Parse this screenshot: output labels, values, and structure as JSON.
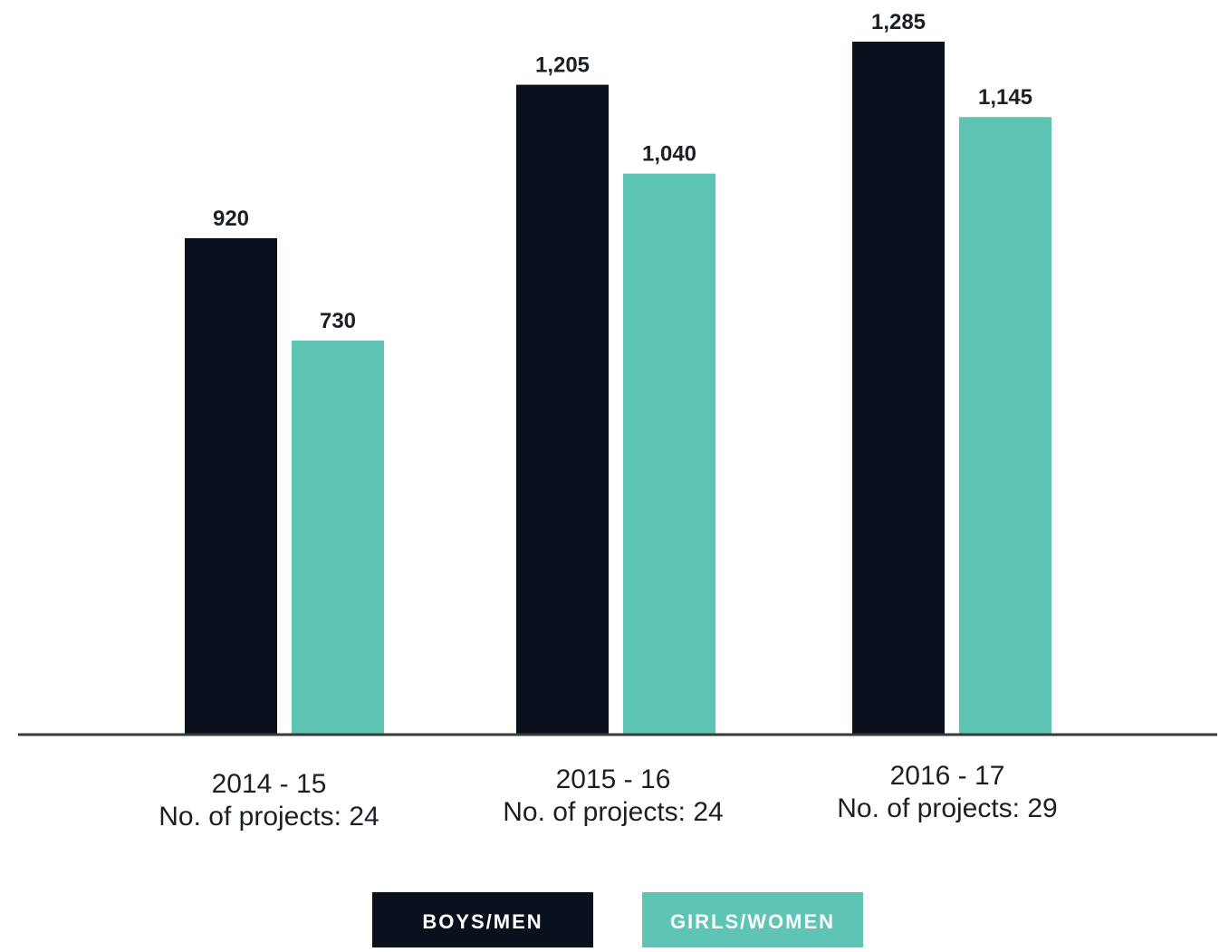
{
  "chart_data": {
    "type": "bar",
    "categories": [
      "2014 - 15",
      "2015 - 16",
      "2016 - 17"
    ],
    "category_sublabels": [
      "No. of projects: 24",
      "No. of projects: 24",
      "No. of projects: 29"
    ],
    "series": [
      {
        "name": "BOYS/MEN",
        "color": "#0b111c",
        "values": [
          920,
          1205,
          1285
        ],
        "value_labels": [
          "920",
          "1,205",
          "1,285"
        ]
      },
      {
        "name": "GIRLS/WOMEN",
        "color": "#5ec4b4",
        "values": [
          730,
          1040,
          1145
        ],
        "value_labels": [
          "730",
          "1,040",
          "1,145"
        ]
      }
    ],
    "title": "",
    "xlabel": "",
    "ylabel": "",
    "ylim": [
      0,
      1300
    ],
    "grid": false,
    "legend_position": "bottom-center",
    "axis_color": "#3a3a3a"
  }
}
